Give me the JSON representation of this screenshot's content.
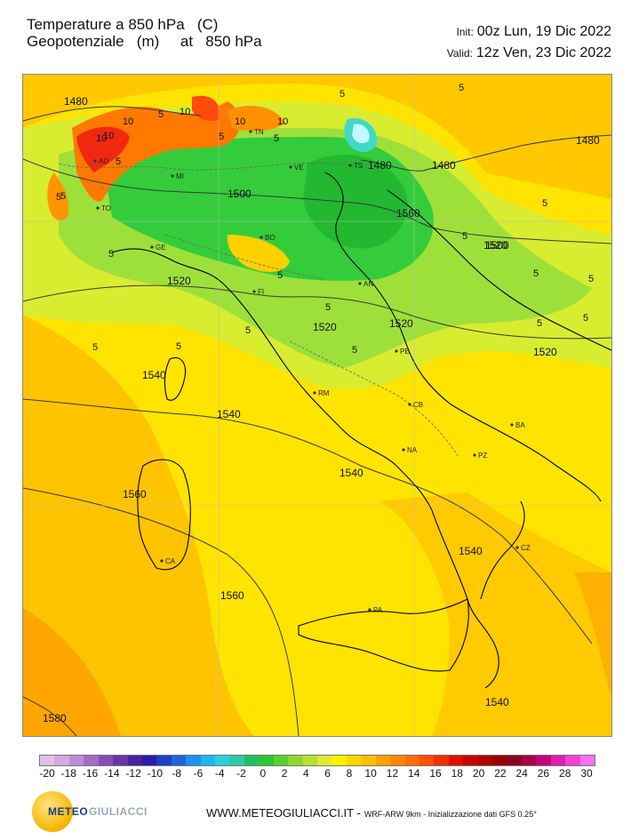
{
  "header": {
    "title_line1": "Temperature a 850 hPa   (C)",
    "title_line2": "Geopotenziale   (m)     at   850 hPa",
    "init_label": "Init:",
    "init_value": "00z Lun, 19 Dic 2022",
    "valid_label": "Valid:",
    "valid_value": "12z Ven, 23 Dic 2022"
  },
  "map": {
    "cities": [
      "AO",
      "TO",
      "MI",
      "TN",
      "VE",
      "TS",
      "GE",
      "BO",
      "FI",
      "AN",
      "PE",
      "RM",
      "CB",
      "NA",
      "BA",
      "PZ",
      "CA",
      "CZ",
      "PA"
    ],
    "contours": [
      "1480",
      "1480",
      "1480",
      "1480",
      "1500",
      "1500",
      "1520",
      "1520",
      "1520",
      "1520",
      "1520",
      "1540",
      "1540",
      "1540",
      "1540",
      "1540",
      "1560",
      "1560",
      "1580",
      "1560"
    ],
    "temp_labels": [
      "5",
      "5",
      "5",
      "10",
      "10",
      "10",
      "10",
      "10",
      "10",
      "5",
      "5",
      "5",
      "5",
      "5",
      "5",
      "5",
      "5",
      "5",
      "5",
      "5",
      "5",
      "5",
      "5",
      "5",
      "5",
      "5",
      "5"
    ]
  },
  "colorbar": {
    "ticks": [
      "-20",
      "-18",
      "-16",
      "-14",
      "-12",
      "-10",
      "-8",
      "-6",
      "-4",
      "-2",
      "0",
      "2",
      "4",
      "6",
      "8",
      "10",
      "12",
      "14",
      "16",
      "18",
      "20",
      "22",
      "24",
      "26",
      "28",
      "30"
    ],
    "colors": [
      "#e0c0e8",
      "#d4a8e0",
      "#c08cd4",
      "#a66cc4",
      "#8a4cb4",
      "#6c34a8",
      "#4a22a0",
      "#2a1ca8",
      "#1f3ec4",
      "#1c66dc",
      "#1e90f0",
      "#20b4f0",
      "#2cd0d8",
      "#30c8a8",
      "#20c060",
      "#2cc830",
      "#5ad02c",
      "#8cd830",
      "#b8e030",
      "#e0ea30",
      "#fff200",
      "#ffd800",
      "#ffbe00",
      "#ffa200",
      "#ff8800",
      "#ff6e00",
      "#ff5000",
      "#f03000",
      "#e01000",
      "#c80000",
      "#b00000",
      "#980000",
      "#8c0020",
      "#a80040",
      "#c4007a",
      "#dc20b0",
      "#f040d8",
      "#ff70f0"
    ],
    "lum_mid": "#f7f700"
  },
  "footer": {
    "brand_left": "METEO",
    "brand_right": "GIULIACCI",
    "website": "WWW.METEOGIULIACCI.IT -",
    "credit": "WRF-ARW 9km - Inizializzazione dati GFS 0.25°"
  },
  "colors": {
    "orange": "#ffb300",
    "yellow": "#ffe600",
    "green": "#3cd23c",
    "lightgreen": "#9ee03a",
    "red": "#ff3a1c",
    "cyan": "#60f0f0"
  }
}
